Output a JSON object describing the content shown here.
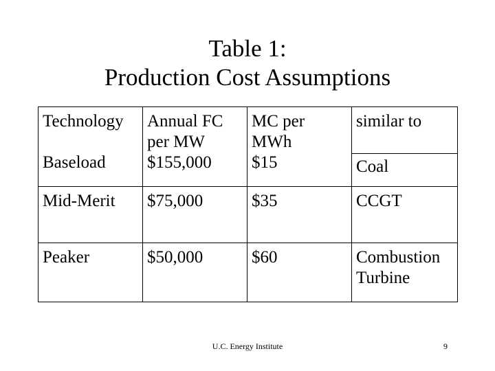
{
  "title": {
    "line1": "Table 1:",
    "line2": "Production Cost Assumptions"
  },
  "table": {
    "headers": [
      [
        "Technology"
      ],
      [
        "Annual FC",
        "per MW"
      ],
      [
        "MC per",
        "MWh"
      ],
      [
        "similar to"
      ]
    ],
    "rows": [
      {
        "technology": "Baseload",
        "annual_fc": "$155,000",
        "mc": "$15",
        "similar": [
          "Coal"
        ]
      },
      {
        "technology": "Mid-Merit",
        "annual_fc": "$75,000",
        "mc": "$35",
        "similar": [
          "CCGT"
        ]
      },
      {
        "technology": "Peaker",
        "annual_fc": "$50,000",
        "mc": "$60",
        "similar": [
          "Combustion",
          "Turbine"
        ]
      }
    ]
  },
  "footer": {
    "source": "U.C. Energy Institute",
    "page": "9"
  }
}
